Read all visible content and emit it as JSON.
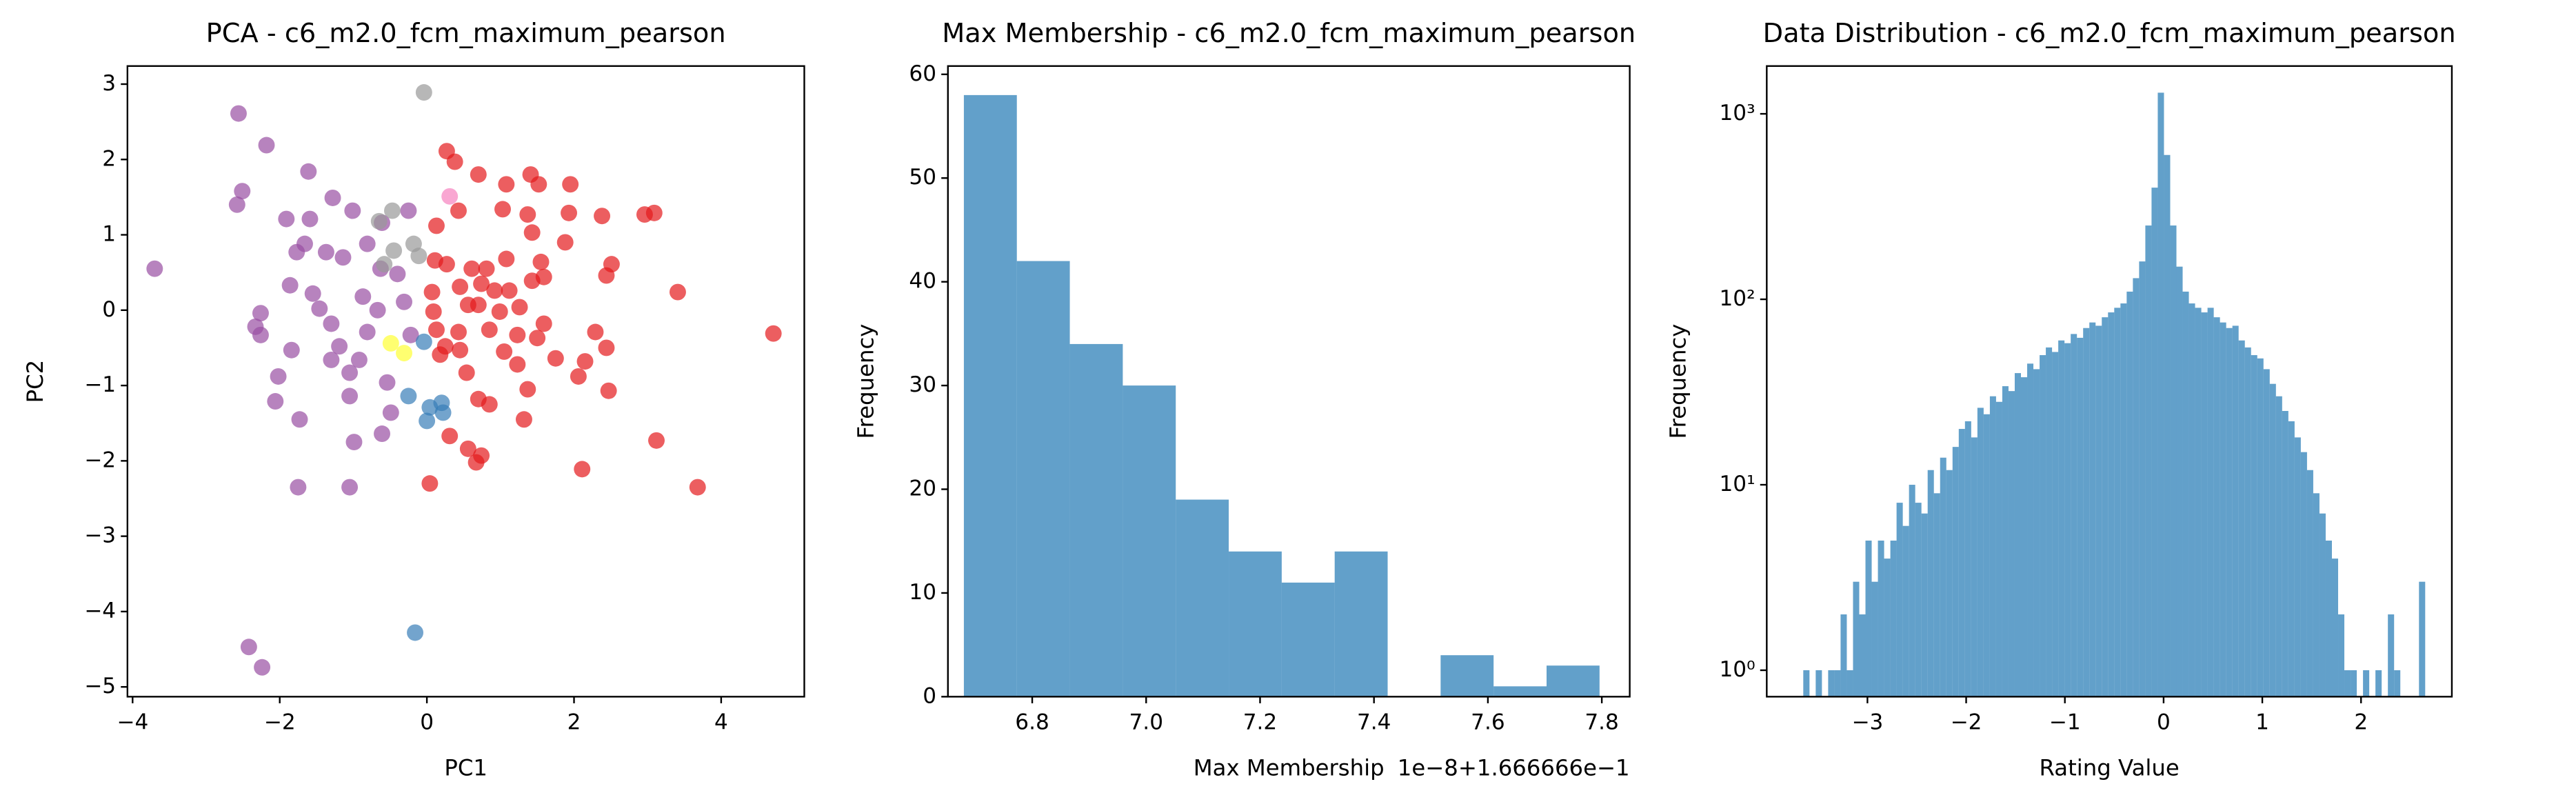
{
  "chart_data": [
    {
      "type": "scatter",
      "title": "PCA - c6_m2.0_fcm_maximum_pearson",
      "xlabel": "PC1",
      "ylabel": "PC2",
      "xlim": [
        -4.07,
        5.13
      ],
      "ylim": [
        -5.13,
        3.24
      ],
      "xticks": [
        {
          "value": -4,
          "label": "−4"
        },
        {
          "value": -2,
          "label": "−2"
        },
        0,
        2,
        4
      ],
      "yticks": [
        {
          "value": -5,
          "label": "−5"
        },
        {
          "value": -4,
          "label": "−4"
        },
        {
          "value": -3,
          "label": "−3"
        },
        {
          "value": -2,
          "label": "−2"
        },
        {
          "value": -1,
          "label": "−1"
        },
        0,
        1,
        2,
        3
      ],
      "series": [
        {
          "color": "#984ea3",
          "x": [
            -3.7,
            -2.56,
            -2.18,
            -2.51,
            -2.58,
            -1.61,
            -1.28,
            -1.91,
            -1.59,
            -1.01,
            -1.66,
            -1.77,
            -1.37,
            -1.14,
            -0.81,
            -0.61,
            -0.25,
            -2.26,
            -2.33,
            -2.26,
            -1.86,
            -1.55,
            -1.46,
            -1.84,
            -2.02,
            -2.06,
            -1.73,
            -1.3,
            -1.19,
            -1.3,
            -1.05,
            -1.05,
            -0.92,
            -0.81,
            -0.87,
            -0.67,
            -0.54,
            -0.49,
            -0.61,
            -0.99,
            -1.75,
            -1.05,
            -2.42,
            -2.24,
            -0.31,
            -0.4,
            -0.63,
            -0.22
          ],
          "y": [
            0.55,
            2.61,
            2.19,
            1.58,
            1.4,
            1.84,
            1.49,
            1.21,
            1.21,
            1.32,
            0.88,
            0.77,
            0.77,
            0.7,
            0.88,
            1.16,
            1.32,
            -0.04,
            -0.22,
            -0.33,
            0.33,
            0.22,
            0.02,
            -0.53,
            -0.88,
            -1.21,
            -1.45,
            -0.18,
            -0.48,
            -0.66,
            -0.83,
            -1.14,
            -0.66,
            -0.29,
            0.18,
            0,
            -0.96,
            -1.36,
            -1.64,
            -1.75,
            -2.35,
            -2.35,
            -4.47,
            -4.74,
            0.11,
            0.48,
            0.55,
            -0.33
          ]
        },
        {
          "color": "#e41a1c",
          "x": [
            0.27,
            0.38,
            0.13,
            0.43,
            0.7,
            1.03,
            1.08,
            1.41,
            1.52,
            1.37,
            1.43,
            1.95,
            1.93,
            2.38,
            2.96,
            3.09,
            2.51,
            2.44,
            3.41,
            4.71,
            2.29,
            2.44,
            2.15,
            2.06,
            2.47,
            3.12,
            2.11,
            3.68,
            1.37,
            1.32,
            0.7,
            0.85,
            0.31,
            0.56,
            0.74,
            0.04,
            0.67,
            0.54,
            0.45,
            0.85,
            0.99,
            1.12,
            1.26,
            1.43,
            1.59,
            1.59,
            1.5,
            1.23,
            1.05,
            0.81,
            0.61,
            0.74,
            0.45,
            0.27,
            0.11,
            0.07,
            0.09,
            0.13,
            0.25,
            0.56,
            0.7,
            0.92,
            0.43,
            0.18,
            1.23,
            1.75,
            1.88,
            1.55,
            1.08
          ],
          "y": [
            2.11,
            1.97,
            1.12,
            1.32,
            1.8,
            1.34,
            1.67,
            1.8,
            1.67,
            1.27,
            1.03,
            1.67,
            1.29,
            1.25,
            1.27,
            1.29,
            0.61,
            0.46,
            0.24,
            -0.31,
            -0.29,
            -0.5,
            -0.68,
            -0.88,
            -1.07,
            -1.73,
            -2.11,
            -2.35,
            -1.05,
            -1.45,
            -1.18,
            -1.25,
            -1.67,
            -1.84,
            -1.93,
            -2.3,
            -2.02,
            -0.83,
            -0.53,
            -0.26,
            -0.02,
            0.26,
            0.04,
            0.39,
            0.44,
            -0.18,
            -0.37,
            -0.33,
            -0.55,
            0.55,
            0.55,
            0.35,
            0.31,
            0.61,
            0.66,
            0.24,
            -0.02,
            -0.26,
            -0.48,
            0.07,
            0.07,
            0.26,
            -0.29,
            -0.59,
            -0.72,
            -0.64,
            0.9,
            0.64,
            0.68
          ]
        },
        {
          "color": "#999999",
          "x": [
            -0.04,
            -0.65,
            -0.47,
            -0.18,
            -0.11,
            -0.45,
            -0.58
          ],
          "y": [
            2.89,
            1.18,
            1.32,
            0.88,
            0.72,
            0.79,
            0.61
          ]
        },
        {
          "color": "#377eb8",
          "x": [
            -0.16,
            -0.25,
            0.04,
            0.2,
            0.22,
            0,
            -0.04
          ],
          "y": [
            -4.28,
            -1.14,
            -1.29,
            -1.23,
            -1.36,
            -1.47,
            -0.42
          ]
        },
        {
          "color": "#f781bf",
          "x": [
            0.31
          ],
          "y": [
            1.51
          ]
        },
        {
          "color": "#ffff33",
          "x": [
            -0.49,
            -0.31
          ],
          "y": [
            -0.44,
            -0.57
          ]
        }
      ]
    },
    {
      "type": "histogram",
      "title": "Max Membership - c6_m2.0_fcm_maximum_pearson",
      "xlabel": "Max Membership",
      "ylabel": "Frequency",
      "offset_text": "1e−8+1.666666e−1",
      "color": "#1f77b4",
      "xlim": [
        6.652,
        7.849
      ],
      "ylim": [
        0,
        60.8
      ],
      "xticks": [
        6.8,
        {
          "value": 7,
          "label": "7.0"
        },
        7.2,
        7.4,
        7.6,
        7.8
      ],
      "yticks": [
        0,
        10,
        20,
        30,
        40,
        50,
        60
      ],
      "bins": [
        6.68,
        6.773,
        6.866,
        6.959,
        7.052,
        7.145,
        7.238,
        7.331,
        7.424,
        7.517,
        7.61,
        7.703,
        7.796
      ],
      "values": [
        58,
        42,
        34,
        30,
        19,
        14,
        11,
        14,
        0,
        4,
        1,
        3
      ]
    },
    {
      "type": "histogram",
      "title": "Data Distribution - c6_m2.0_fcm_maximum_pearson",
      "xlabel": "Rating Value",
      "ylabel": "Frequency",
      "color": "#1f77b4",
      "yscale": "log",
      "xlim": [
        -4.02,
        2.92
      ],
      "ylim": [
        0.72,
        1810
      ],
      "xticks": [
        {
          "value": -3,
          "label": "−3"
        },
        {
          "value": -2,
          "label": "−2"
        },
        {
          "value": -1,
          "label": "−1"
        },
        0,
        1,
        2
      ],
      "yticks": [
        {
          "value": 1,
          "label": "10⁰"
        },
        {
          "value": 10,
          "label": "10¹"
        },
        {
          "value": 100,
          "label": "10²"
        },
        {
          "value": 1000,
          "label": "10³"
        }
      ],
      "bins": [
        -3.65,
        -3.587,
        -3.524,
        -3.461,
        -3.398,
        -3.335,
        -3.272,
        -3.209,
        -3.146,
        -3.083,
        -3.02,
        -2.957,
        -2.894,
        -2.831,
        -2.768,
        -2.705,
        -2.642,
        -2.579,
        -2.516,
        -2.453,
        -2.39,
        -2.327,
        -2.264,
        -2.201,
        -2.138,
        -2.075,
        -2.012,
        -1.949,
        -1.886,
        -1.823,
        -1.76,
        -1.697,
        -1.634,
        -1.571,
        -1.508,
        -1.445,
        -1.382,
        -1.319,
        -1.256,
        -1.193,
        -1.13,
        -1.067,
        -1.004,
        -0.941,
        -0.878,
        -0.815,
        -0.752,
        -0.689,
        -0.626,
        -0.563,
        -0.5,
        -0.437,
        -0.374,
        -0.311,
        -0.248,
        -0.185,
        -0.122,
        -0.059,
        0.004,
        0.067,
        0.13,
        0.193,
        0.256,
        0.319,
        0.382,
        0.445,
        0.508,
        0.571,
        0.634,
        0.697,
        0.76,
        0.823,
        0.886,
        0.949,
        1.012,
        1.075,
        1.138,
        1.201,
        1.264,
        1.327,
        1.39,
        1.453,
        1.516,
        1.579,
        1.642,
        1.705,
        1.768,
        1.831,
        1.894,
        1.957,
        2.02,
        2.083,
        2.146,
        2.209,
        2.272,
        2.335,
        2.398,
        2.461,
        2.524,
        2.587,
        2.65
      ],
      "values": [
        1,
        0,
        1,
        0,
        1,
        1,
        2,
        1,
        3,
        2,
        5,
        3,
        5,
        4,
        5,
        8,
        6,
        10,
        8,
        7,
        12,
        9,
        14,
        12,
        16,
        20,
        22,
        18,
        26,
        24,
        30,
        28,
        34,
        32,
        40,
        38,
        45,
        42,
        50,
        55,
        52,
        60,
        58,
        65,
        62,
        70,
        75,
        72,
        80,
        85,
        90,
        95,
        110,
        130,
        160,
        250,
        400,
        1300,
        600,
        250,
        150,
        110,
        95,
        90,
        85,
        90,
        80,
        75,
        70,
        72,
        60,
        55,
        50,
        48,
        42,
        35,
        30,
        25,
        22,
        18,
        15,
        12,
        9,
        7,
        5,
        4,
        2,
        1,
        1,
        0,
        1,
        0,
        1,
        0,
        2,
        1,
        0,
        0,
        0,
        3
      ]
    }
  ]
}
